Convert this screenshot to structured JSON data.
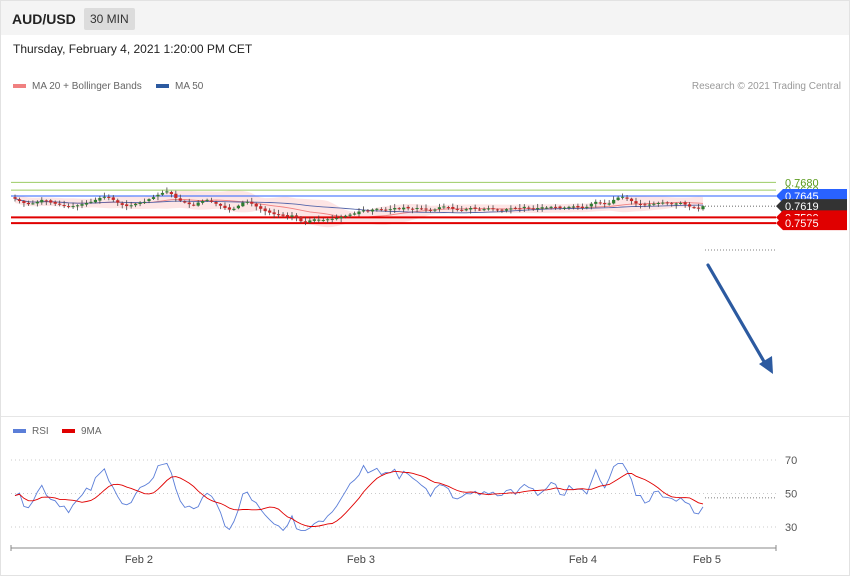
{
  "header": {
    "symbol": "AUD/USD",
    "timeframe": "30 MIN"
  },
  "datetime": "Thursday, February 4, 2021 1:20:00 PM CET",
  "legend": [
    {
      "label": "MA 20 + Bollinger Bands",
      "color": "#f08080"
    },
    {
      "label": "MA 50",
      "color": "#2c5aa0"
    }
  ],
  "copyright": "Research © 2021 Trading Central",
  "colors": {
    "up_candle": "#2e7d32",
    "down_candle": "#c62828",
    "bollinger_fill": "#fde0e0",
    "ma20": "#f08080",
    "ma50": "#5566aa",
    "resistance": "#2962ff",
    "support": "#e00000",
    "green_level": "#9ccc65",
    "arrow": "#2c5aa0",
    "current_price": "#333333"
  },
  "chart_data": [
    {
      "type": "candlestick",
      "title": "",
      "ylim": [
        0.7555,
        0.769
      ],
      "x_labels": [
        "Feb 2",
        "Feb 3",
        "Feb 4",
        "Feb 5"
      ],
      "levels": [
        {
          "value": "0.7680",
          "kind": "green"
        },
        {
          "value": "0.7660",
          "kind": "green"
        },
        {
          "value": "0.7645",
          "kind": "resistance"
        },
        {
          "value": "0.7619",
          "kind": "current"
        },
        {
          "value": "0.7590",
          "kind": "support"
        },
        {
          "value": "0.7575",
          "kind": "support"
        }
      ],
      "close_path": [
        0.7638,
        0.7632,
        0.7627,
        0.7624,
        0.7626,
        0.763,
        0.7635,
        0.7632,
        0.7628,
        0.7625,
        0.7623,
        0.762,
        0.7618,
        0.7619,
        0.7621,
        0.7624,
        0.7627,
        0.763,
        0.7635,
        0.764,
        0.7643,
        0.764,
        0.7635,
        0.7628,
        0.7622,
        0.7619,
        0.7621,
        0.7625,
        0.7628,
        0.763,
        0.7637,
        0.7642,
        0.7648,
        0.7653,
        0.7657,
        0.765,
        0.764,
        0.7633,
        0.7628,
        0.7624,
        0.7621,
        0.7628,
        0.7632,
        0.7635,
        0.763,
        0.7625,
        0.762,
        0.7614,
        0.761,
        0.7612,
        0.762,
        0.7628,
        0.763,
        0.7625,
        0.7618,
        0.7612,
        0.7606,
        0.7602,
        0.7598,
        0.7596,
        0.7594,
        0.7592,
        0.7595,
        0.759,
        0.758,
        0.7578,
        0.7582,
        0.7585,
        0.7584,
        0.7583,
        0.7585,
        0.7586,
        0.7588,
        0.7591,
        0.7594,
        0.7597,
        0.76,
        0.7605,
        0.7608,
        0.7607,
        0.761,
        0.7612,
        0.7609,
        0.7608,
        0.7611,
        0.7614,
        0.7612,
        0.7615,
        0.7613,
        0.7611,
        0.7614,
        0.7612,
        0.761,
        0.7609,
        0.761,
        0.7616,
        0.7618,
        0.7615,
        0.7612,
        0.7611,
        0.7609,
        0.7611,
        0.7614,
        0.7612,
        0.761,
        0.7611,
        0.7613,
        0.7612,
        0.761,
        0.7609,
        0.7611,
        0.7613,
        0.7612,
        0.7613,
        0.7617,
        0.7615,
        0.7612,
        0.7614,
        0.7616,
        0.7615,
        0.7617,
        0.7616,
        0.7614,
        0.7615,
        0.7617,
        0.7618,
        0.7616,
        0.7614,
        0.7617,
        0.7625,
        0.763,
        0.7628,
        0.7624,
        0.7626,
        0.7635,
        0.7641,
        0.7643,
        0.7638,
        0.7632,
        0.7626,
        0.7622,
        0.7621,
        0.7623,
        0.7625,
        0.7627,
        0.7628,
        0.7627,
        0.7624,
        0.7626,
        0.7627,
        0.7623,
        0.7618,
        0.7614,
        0.7613,
        0.7619
      ]
    },
    {
      "type": "line",
      "title": "",
      "legend": [
        {
          "label": "RSI",
          "color": "#5b7ed8"
        },
        {
          "label": "9MA",
          "color": "#e00000"
        }
      ],
      "ylim": [
        20,
        80
      ],
      "ticks": [
        "70",
        "50",
        "30"
      ],
      "rsi_last": 42
    }
  ]
}
